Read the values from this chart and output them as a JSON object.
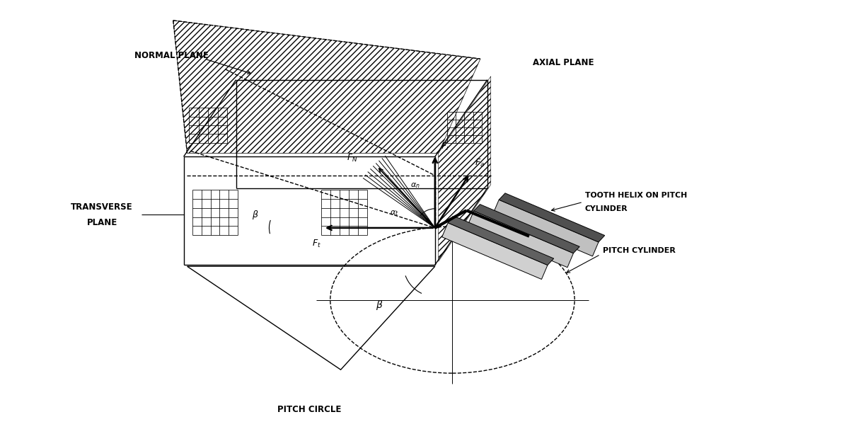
{
  "bg_color": "#ffffff",
  "labels": {
    "normal_plane": "NORMAL PLANE",
    "axial_plane": "AXIAL PLANE",
    "transverse_plane_1": "TRANSVERSE",
    "transverse_plane_2": "PLANE",
    "tooth_helix_1": "TOOTH HELIX ON PITCH",
    "tooth_helix_2": "CYLINDER",
    "pitch_cylinder": "PITCH CYLINDER",
    "pitch_circle": "PITCH CIRCLE"
  }
}
